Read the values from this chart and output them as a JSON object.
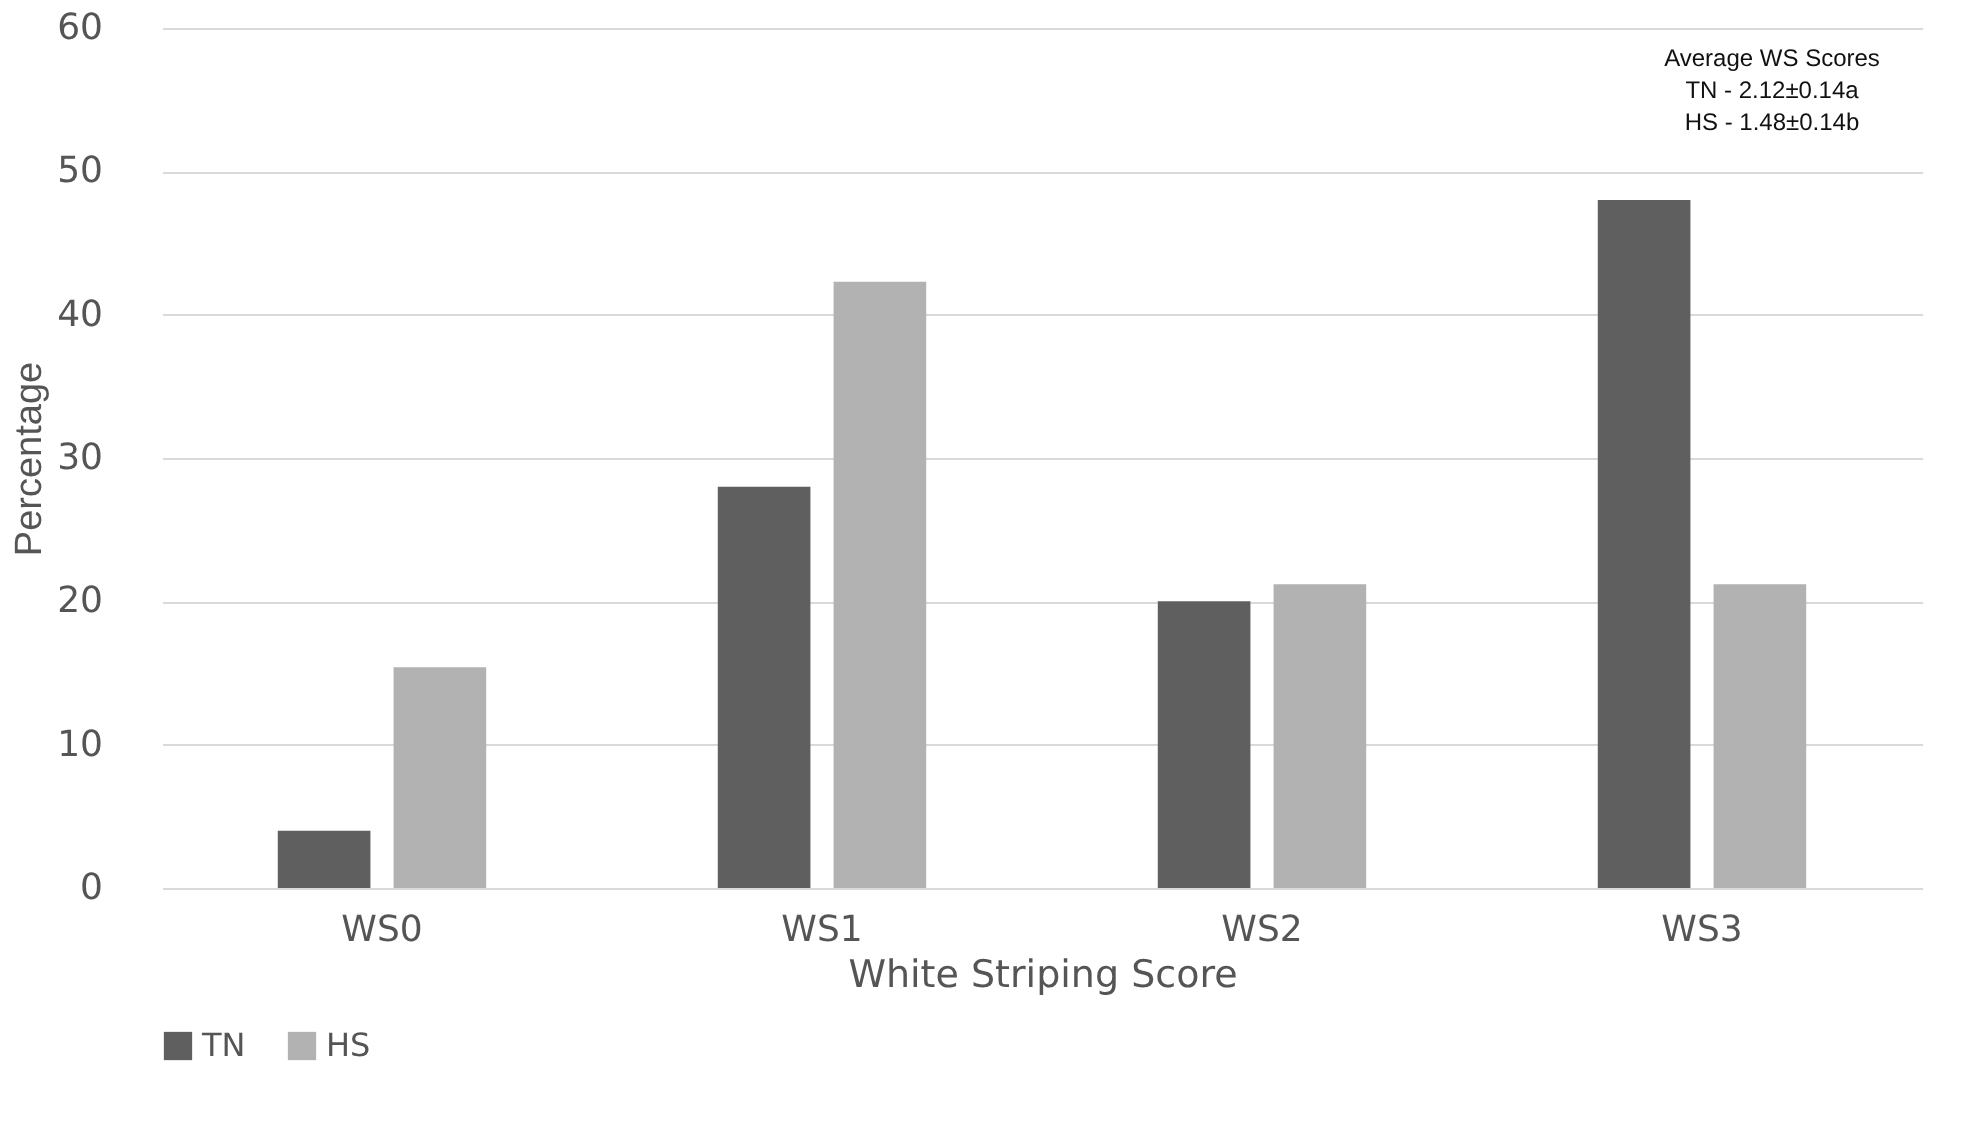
{
  "chart_data": {
    "type": "bar",
    "xlabel": "White Striping Score",
    "ylabel": "Percentage",
    "categories": [
      "WS0",
      "WS1",
      "WS2",
      "WS3"
    ],
    "series": [
      {
        "name": "TN",
        "color": "#5f5f5f",
        "values": [
          4,
          28,
          20,
          48
        ]
      },
      {
        "name": "HS",
        "color": "#b2b2b2",
        "values": [
          15.4,
          42.3,
          21.2,
          21.2
        ]
      }
    ],
    "ylim": [
      0,
      60
    ],
    "yticks": [
      0,
      10,
      20,
      30,
      40,
      50,
      60
    ],
    "grid": "y",
    "legend": "bottom",
    "annotations": [
      "Average WS Scores",
      "TN - 2.12±0.14a",
      "HS - 1.48±0.14b"
    ]
  }
}
